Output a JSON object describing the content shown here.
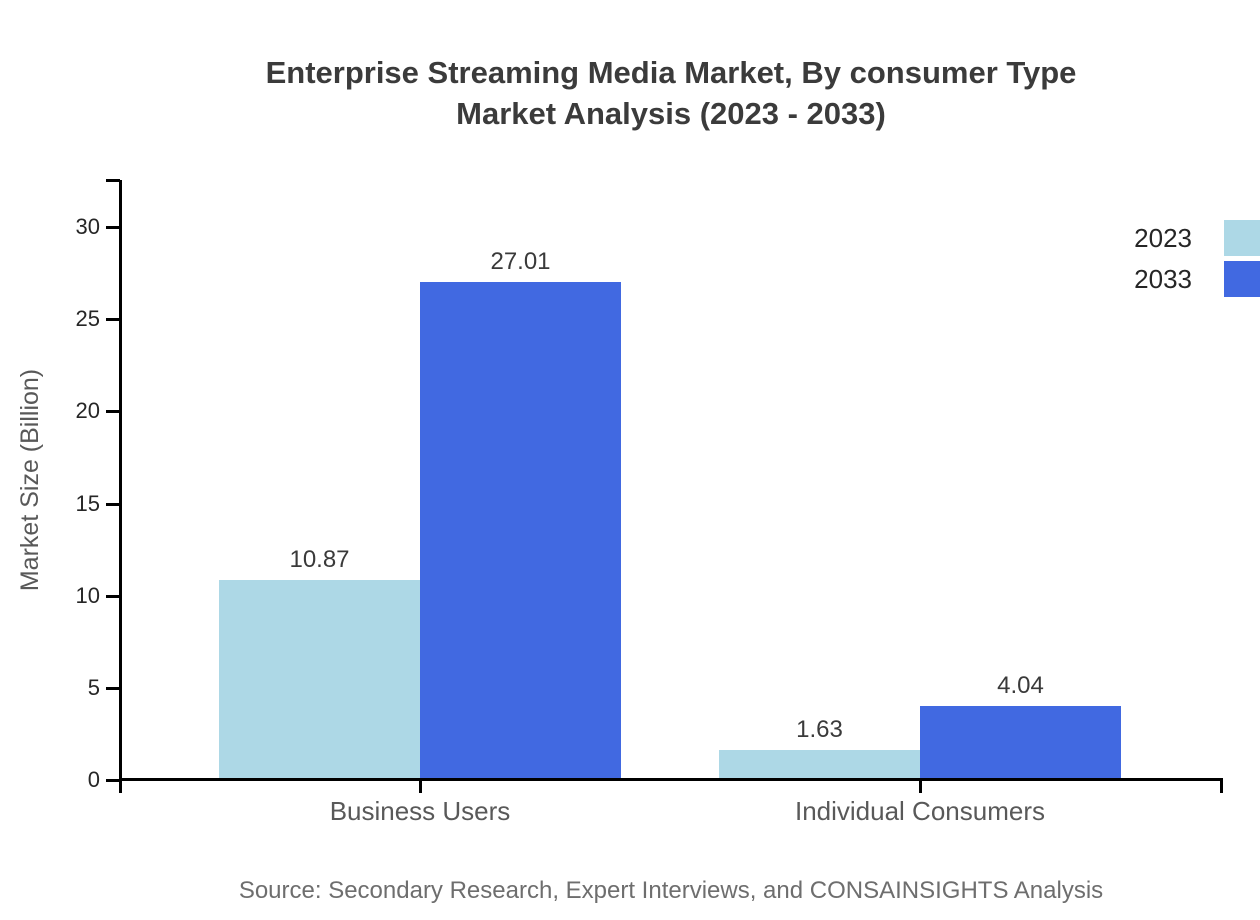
{
  "chart_data": {
    "type": "bar",
    "title_line1": "Enterprise Streaming Media Market, By consumer Type",
    "title_line2": "Market Analysis (2023 - 2033)",
    "ylabel": "Market Size (Billion)",
    "categories": [
      "Business Users",
      "Individual Consumers"
    ],
    "series": [
      {
        "name": "2023",
        "color": "#ADD8E6",
        "values": [
          10.87,
          1.63
        ]
      },
      {
        "name": "2033",
        "color": "#4169E1",
        "values": [
          27.01,
          4.04
        ]
      }
    ],
    "value_labels": [
      [
        "10.87",
        "1.63"
      ],
      [
        "27.01",
        "4.04"
      ]
    ],
    "yticks": [
      0,
      5,
      10,
      15,
      20,
      25,
      30
    ],
    "ylim": [
      0,
      32.5
    ],
    "grid": false,
    "legend_position": "upper-right",
    "axis_color": "#000000",
    "source": "Source: Secondary Research, Expert Interviews, and CONSAINSIGHTS Analysis"
  }
}
